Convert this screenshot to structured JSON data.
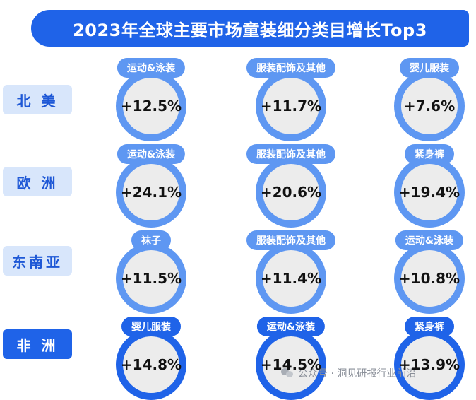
{
  "title": "2023年全球主要市场童装细分类目增长Top3",
  "watermark": "公众号 · 洞见研报行业前沿",
  "colors": {
    "primary": "#1f63e8",
    "light": "#5e97f2",
    "region_bg": "#d8e6fb",
    "circle": "#ececec"
  },
  "chart_data": {
    "type": "table",
    "title": "2023年全球主要市场童装细分类目增长Top3",
    "rows": [
      {
        "region": "北 美",
        "items": [
          {
            "category": "运动&泳装",
            "growth": "+12.5%"
          },
          {
            "category": "服装配饰及其他",
            "growth": "+11.7%"
          },
          {
            "category": "婴儿服装",
            "growth": "+7.6%"
          }
        ]
      },
      {
        "region": "欧 洲",
        "items": [
          {
            "category": "运动&泳装",
            "growth": "+24.1%"
          },
          {
            "category": "服装配饰及其他",
            "growth": "+20.6%"
          },
          {
            "category": "紧身裤",
            "growth": "+19.4%"
          }
        ]
      },
      {
        "region": "东南亚",
        "items": [
          {
            "category": "袜子",
            "growth": "+11.5%"
          },
          {
            "category": "服装配饰及其他",
            "growth": "+11.4%"
          },
          {
            "category": "运动&泳装",
            "growth": "+10.8%"
          }
        ]
      },
      {
        "region": "非 洲",
        "items": [
          {
            "category": "婴儿服装",
            "growth": "+14.8%"
          },
          {
            "category": "运动&泳装",
            "growth": "+14.5%"
          },
          {
            "category": "紧身裤",
            "growth": "+13.9%"
          }
        ]
      }
    ]
  }
}
